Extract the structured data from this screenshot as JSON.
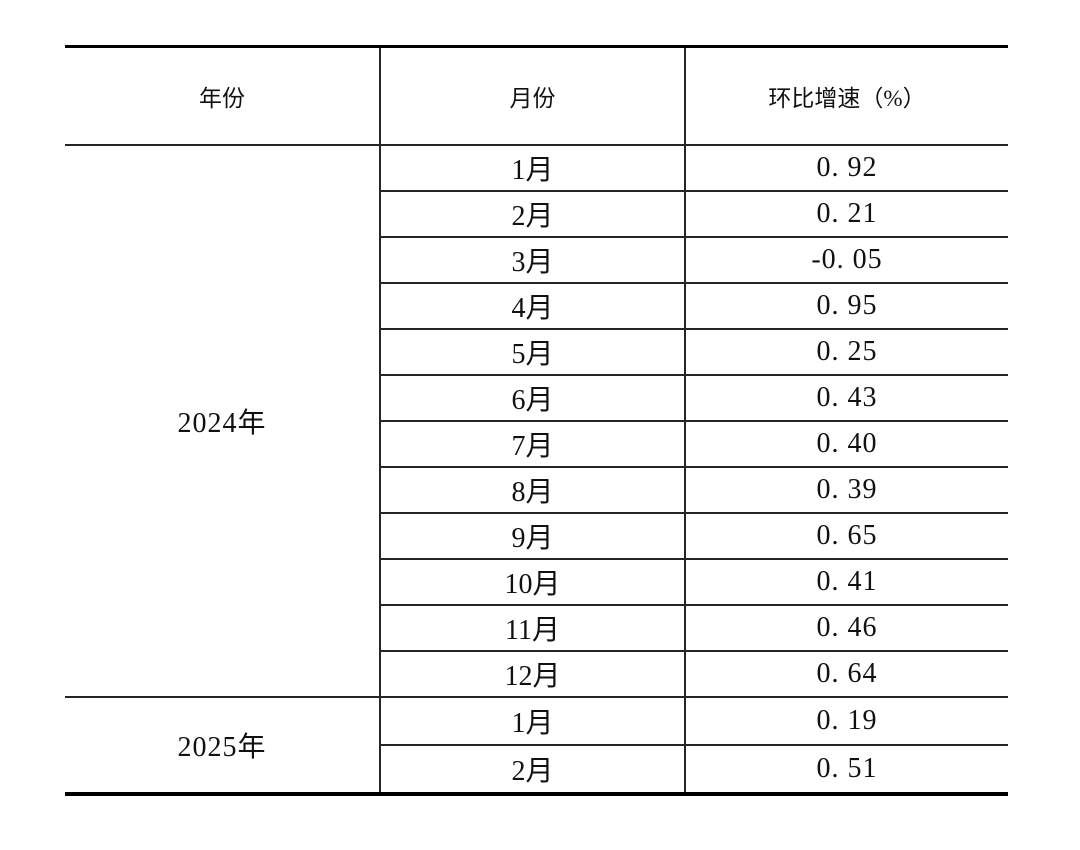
{
  "colors": {
    "background": "#ffffff",
    "text": "#111111",
    "rule_thin": "#262626",
    "rule_thick": "#000000"
  },
  "table": {
    "headers": [
      "年份",
      "月份",
      "环比增速（%）"
    ],
    "groups": [
      {
        "year": "2024年",
        "rows": [
          {
            "month": "1月",
            "value": "0. 92"
          },
          {
            "month": "2月",
            "value": "0. 21"
          },
          {
            "month": "3月",
            "value": "-0. 05"
          },
          {
            "month": "4月",
            "value": "0. 95"
          },
          {
            "month": "5月",
            "value": "0. 25"
          },
          {
            "month": "6月",
            "value": "0. 43"
          },
          {
            "month": "7月",
            "value": "0. 40"
          },
          {
            "month": "8月",
            "value": "0. 39"
          },
          {
            "month": "9月",
            "value": "0. 65"
          },
          {
            "month": "10月",
            "value": "0. 41"
          },
          {
            "month": "11月",
            "value": "0. 46"
          },
          {
            "month": "12月",
            "value": "0. 64"
          }
        ]
      },
      {
        "year": "2025年",
        "rows": [
          {
            "month": "1月",
            "value": "0. 19"
          },
          {
            "month": "2月",
            "value": "0. 51"
          }
        ]
      }
    ]
  },
  "chart_data": {
    "type": "table",
    "columns": [
      "年份",
      "月份",
      "环比增速（%）"
    ],
    "rows": [
      [
        "2024年",
        "1月",
        0.92
      ],
      [
        "2024年",
        "2月",
        0.21
      ],
      [
        "2024年",
        "3月",
        -0.05
      ],
      [
        "2024年",
        "4月",
        0.95
      ],
      [
        "2024年",
        "5月",
        0.25
      ],
      [
        "2024年",
        "6月",
        0.43
      ],
      [
        "2024年",
        "7月",
        0.4
      ],
      [
        "2024年",
        "8月",
        0.39
      ],
      [
        "2024年",
        "9月",
        0.65
      ],
      [
        "2024年",
        "10月",
        0.41
      ],
      [
        "2024年",
        "11月",
        0.46
      ],
      [
        "2024年",
        "12月",
        0.64
      ],
      [
        "2025年",
        "1月",
        0.19
      ],
      [
        "2025年",
        "2月",
        0.51
      ]
    ],
    "legend_position": "none",
    "grid": true
  }
}
